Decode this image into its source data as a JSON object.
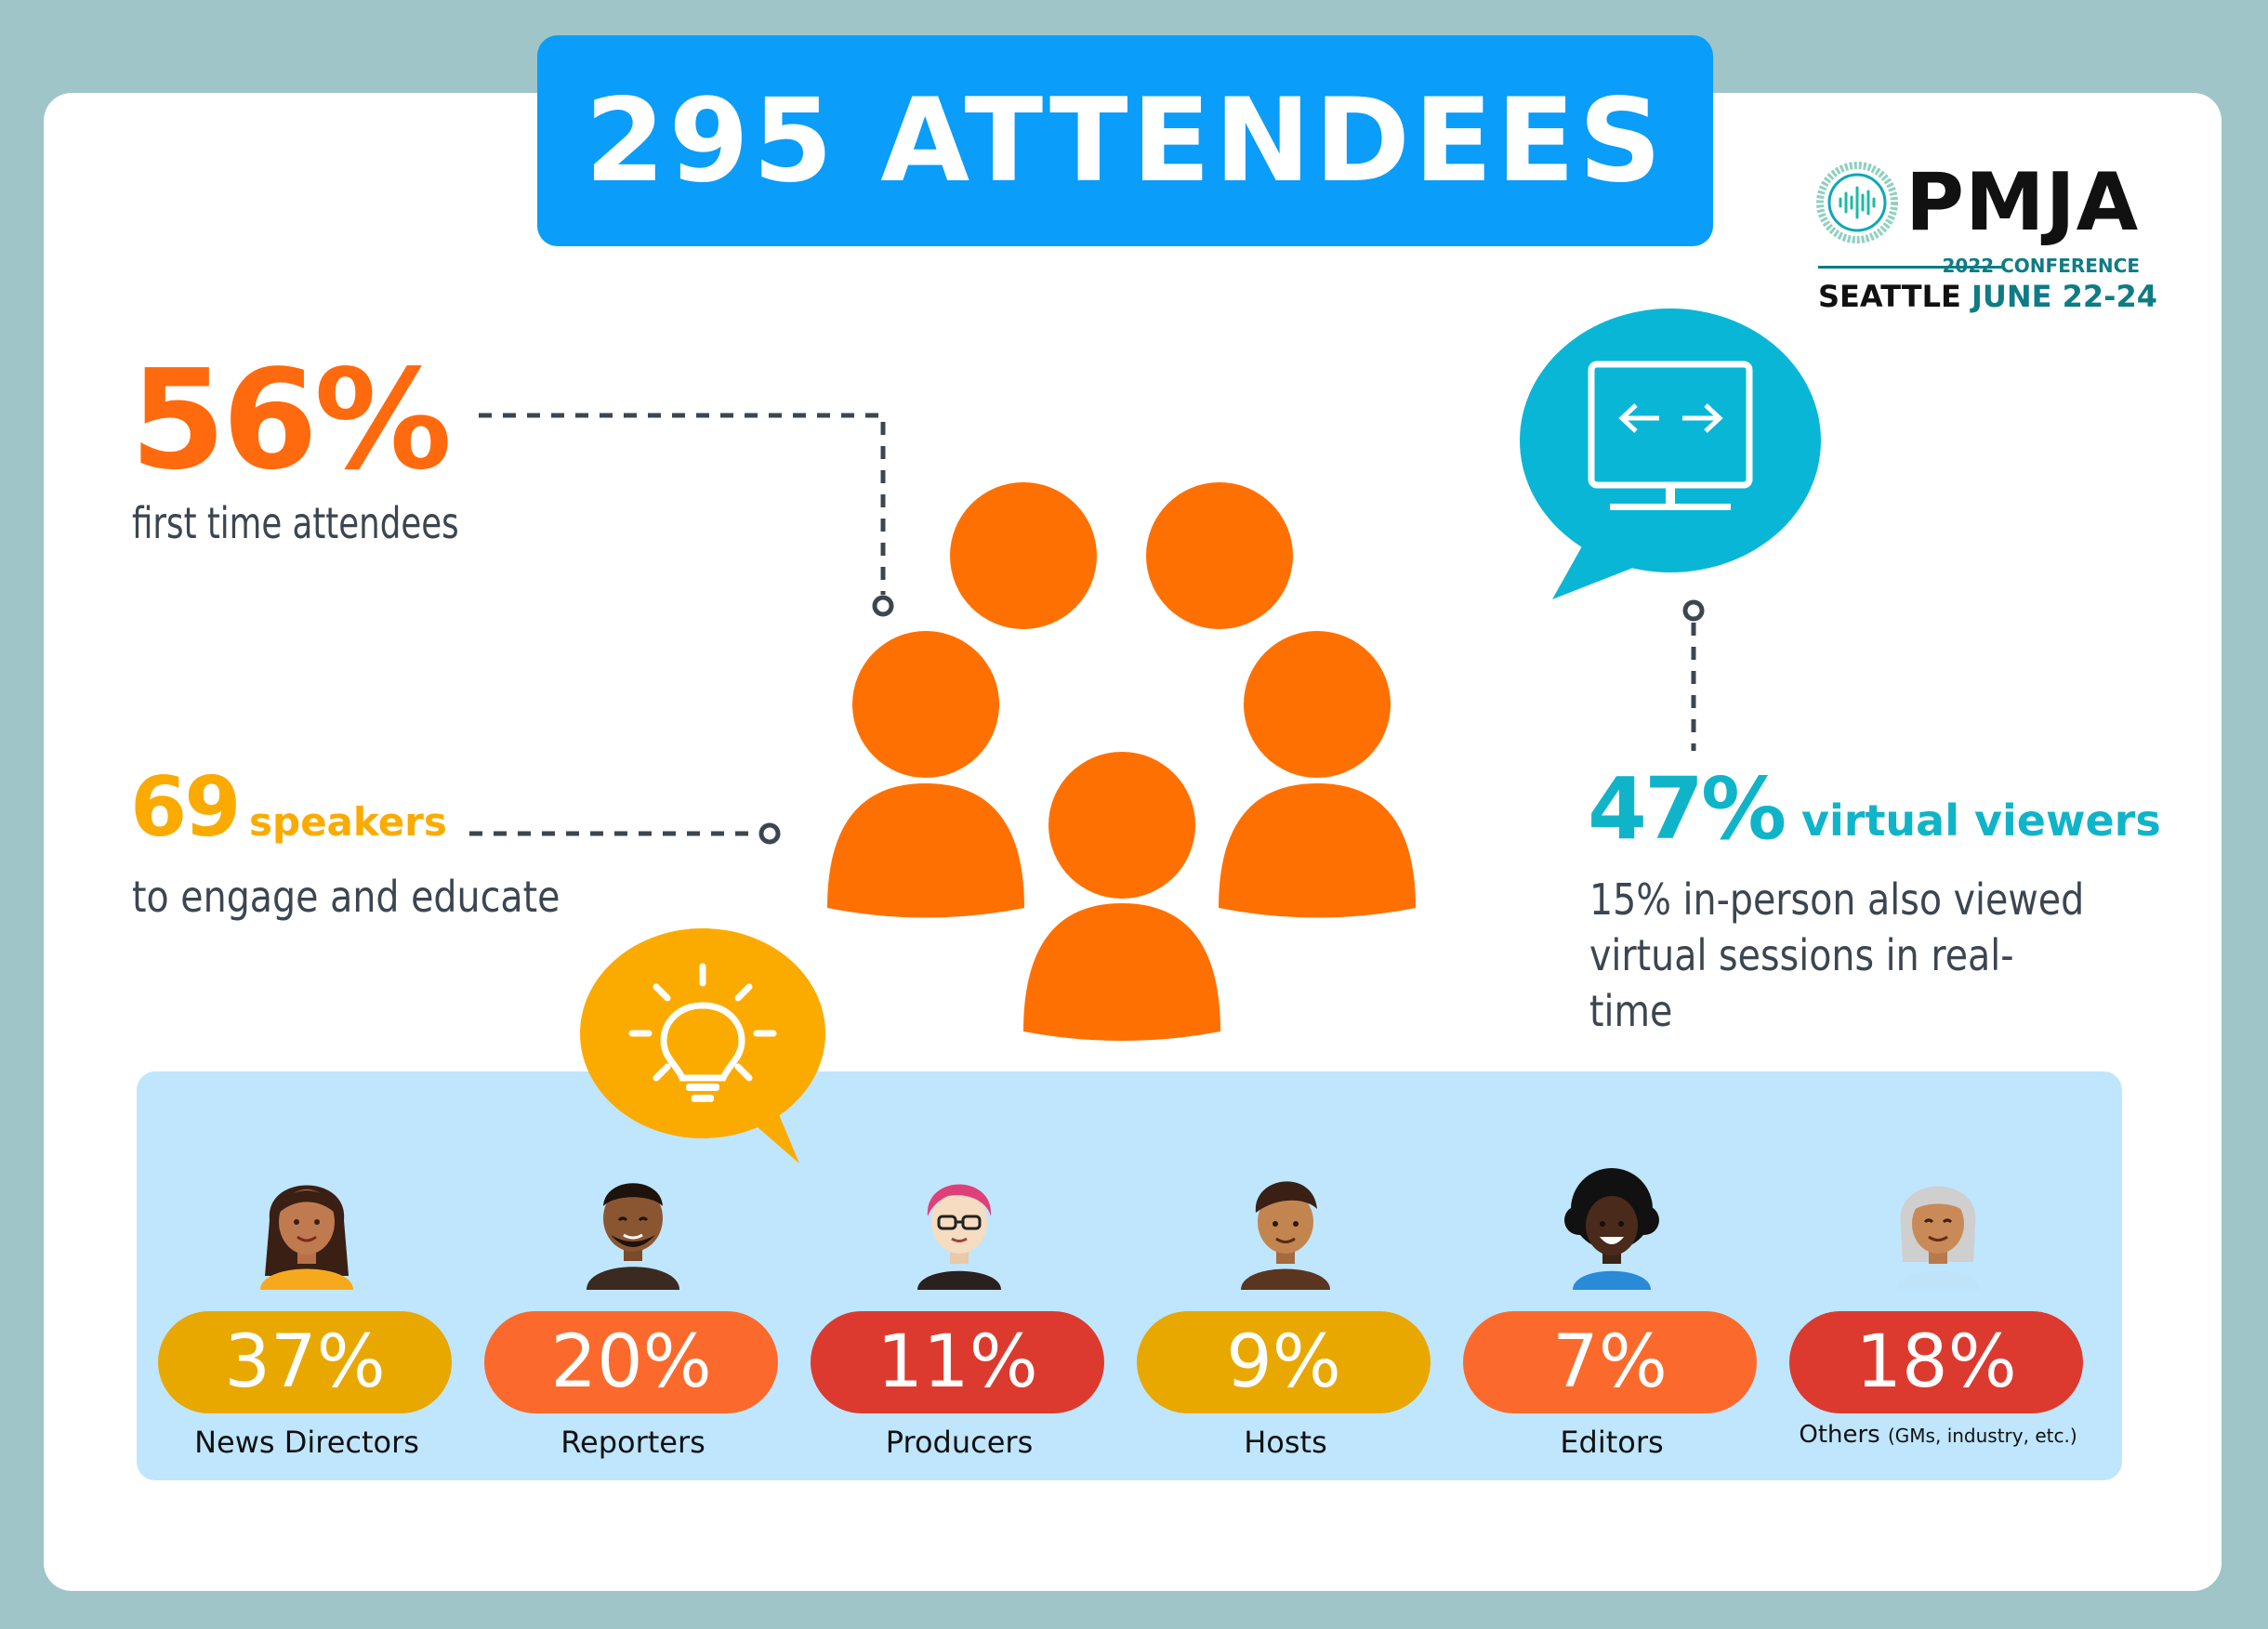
{
  "banner": {
    "title": "295 ATTENDEES"
  },
  "logo": {
    "name": "PMJA",
    "subtitle": "2022 CONFERENCE",
    "city": "SEATTLE",
    "dates": "JUNE 22-24"
  },
  "stats": {
    "first_time": {
      "value": "56%",
      "label": "first time attendees"
    },
    "speakers": {
      "value": "69",
      "word": "speakers",
      "label": "to engage and educate"
    },
    "virtual": {
      "value": "47%",
      "word": "virtual viewers",
      "label_line1": "15% in-person also viewed",
      "label_line2": "virtual sessions in real-time"
    }
  },
  "roles": [
    {
      "percent": "37%",
      "label": "News Directors",
      "color": "#e8a800"
    },
    {
      "percent": "20%",
      "label": "Reporters",
      "color": "#fb6a2c"
    },
    {
      "percent": "11%",
      "label": "Producers",
      "color": "#dd3a2f"
    },
    {
      "percent": "9%",
      "label": "Hosts",
      "color": "#e8a800"
    },
    {
      "percent": "7%",
      "label": "Editors",
      "color": "#fb6a2c"
    },
    {
      "percent": "18%",
      "label": "Others",
      "note": "(GMs, industry, etc.)",
      "color": "#dd3a2f"
    }
  ],
  "colors": {
    "background": "#9fc5c8",
    "banner": "#0a9df9",
    "orange": "#ff6a0e",
    "yellow": "#fbab00",
    "teal": "#10b4c9",
    "panel": "#bfe6fd"
  },
  "icons": [
    "people-group-icon",
    "monitor-speech-bubble-icon",
    "lightbulb-speech-bubble-icon",
    "pmja-logo-mark"
  ]
}
